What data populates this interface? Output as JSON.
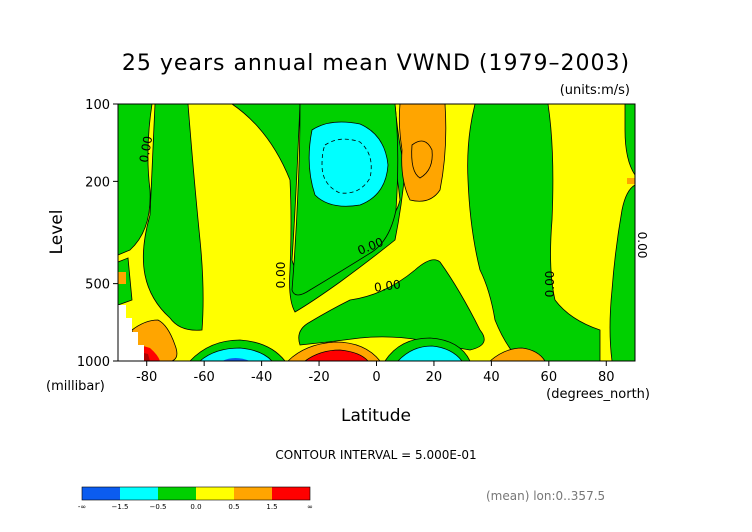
{
  "chart_data": {
    "type": "heatmap",
    "title": "25 years annual mean VWND  (1979–2003)",
    "units_label": "(units:m/s)",
    "xlabel": "Latitude",
    "ylabel": "Level",
    "x_unit_label": "(degrees_north)",
    "y_unit_label": "(millibar)",
    "x_range": [
      -90,
      90
    ],
    "y_range": [
      1000,
      100
    ],
    "y_scale": "log",
    "x_ticks": [
      "-80",
      "-60",
      "-40",
      "-20",
      "0",
      "20",
      "40",
      "60",
      "80"
    ],
    "y_ticks": [
      "100",
      "200",
      "500",
      "1000"
    ],
    "contour_interval_text": "CONTOUR INTERVAL = 5.000E-01",
    "contour_labels": [
      "0.00",
      "0.00",
      "0.00",
      "0.00",
      "0.00",
      "0.00"
    ],
    "colorbar": {
      "colors": [
        "#0b5cf0",
        "#00ffff",
        "#00d000",
        "#ffff00",
        "#ffa500",
        "#ff0000"
      ],
      "labels": [
        "-∞",
        "−1.5",
        "−0.5",
        "0.0",
        "0.5",
        "1.5",
        "∞"
      ]
    },
    "footer": "(mean) lon:0..357.5"
  }
}
